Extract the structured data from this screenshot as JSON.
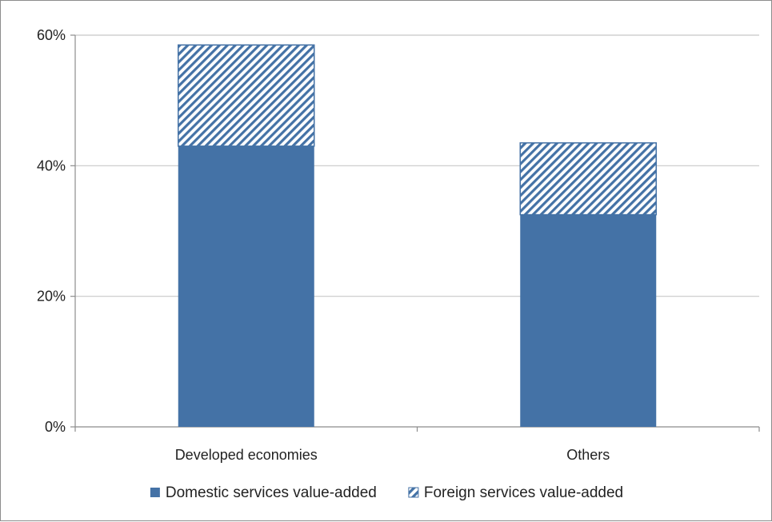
{
  "chart_data": {
    "type": "bar",
    "stacked": true,
    "categories": [
      "Developed economies",
      "Others"
    ],
    "series": [
      {
        "name": "Domestic services value-added",
        "values": [
          43,
          32.5
        ],
        "color": "#4472a6",
        "pattern": "solid"
      },
      {
        "name": "Foreign services value-added",
        "values": [
          15.5,
          11
        ],
        "color": "#4472a6",
        "pattern": "diagonal-stripes"
      }
    ],
    "ylim": [
      0,
      60
    ],
    "yticks": [
      0,
      20,
      40,
      60
    ],
    "ytick_labels": [
      "0%",
      "20%",
      "40%",
      "60%"
    ],
    "grid": true,
    "legend_position": "bottom"
  }
}
